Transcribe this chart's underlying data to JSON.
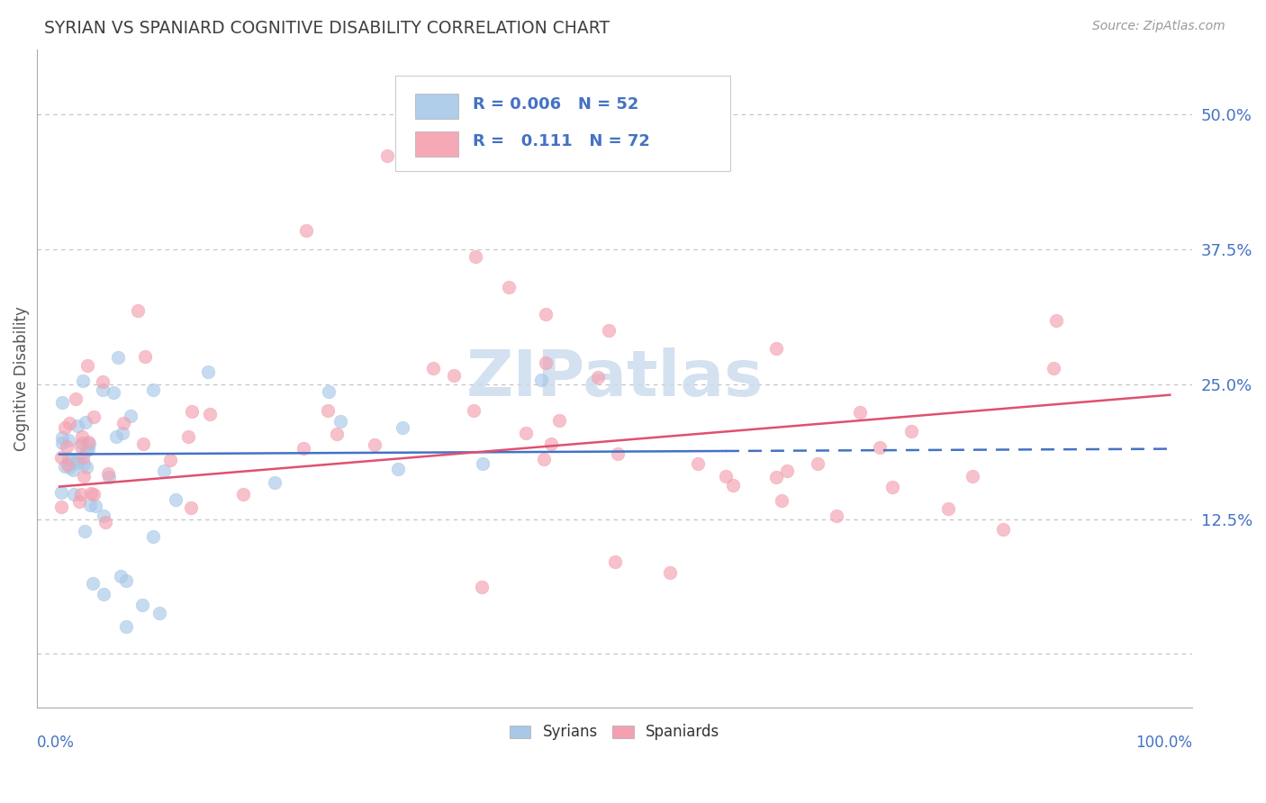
{
  "title": "SYRIAN VS SPANIARD COGNITIVE DISABILITY CORRELATION CHART",
  "source": "Source: ZipAtlas.com",
  "ylabel": "Cognitive Disability",
  "syrians_R": "0.006",
  "syrians_N": "52",
  "spaniards_R": "0.111",
  "spaniards_N": "72",
  "syrian_color": "#a8c8e8",
  "spaniard_color": "#f4a0b0",
  "syrian_line_color": "#4472c4",
  "spaniard_line_color": "#e05070",
  "background_color": "#ffffff",
  "grid_color": "#c0c0c0",
  "title_color": "#404040",
  "axis_label_color": "#4472c4",
  "legend_text_color": "#4472c4",
  "watermark_color": "#ccdcee",
  "ytick_vals": [
    0.0,
    0.125,
    0.25,
    0.375,
    0.5
  ],
  "yticklabels": [
    "",
    "12.5%",
    "25.0%",
    "37.5%",
    "50.0%"
  ],
  "xlim": [
    -0.02,
    1.02
  ],
  "ylim": [
    -0.05,
    0.56
  ],
  "sy_line_intercept": 0.185,
  "sy_line_slope": 0.005,
  "sy_line_solid_end": 0.6,
  "sp_line_intercept": 0.155,
  "sp_line_slope": 0.085
}
